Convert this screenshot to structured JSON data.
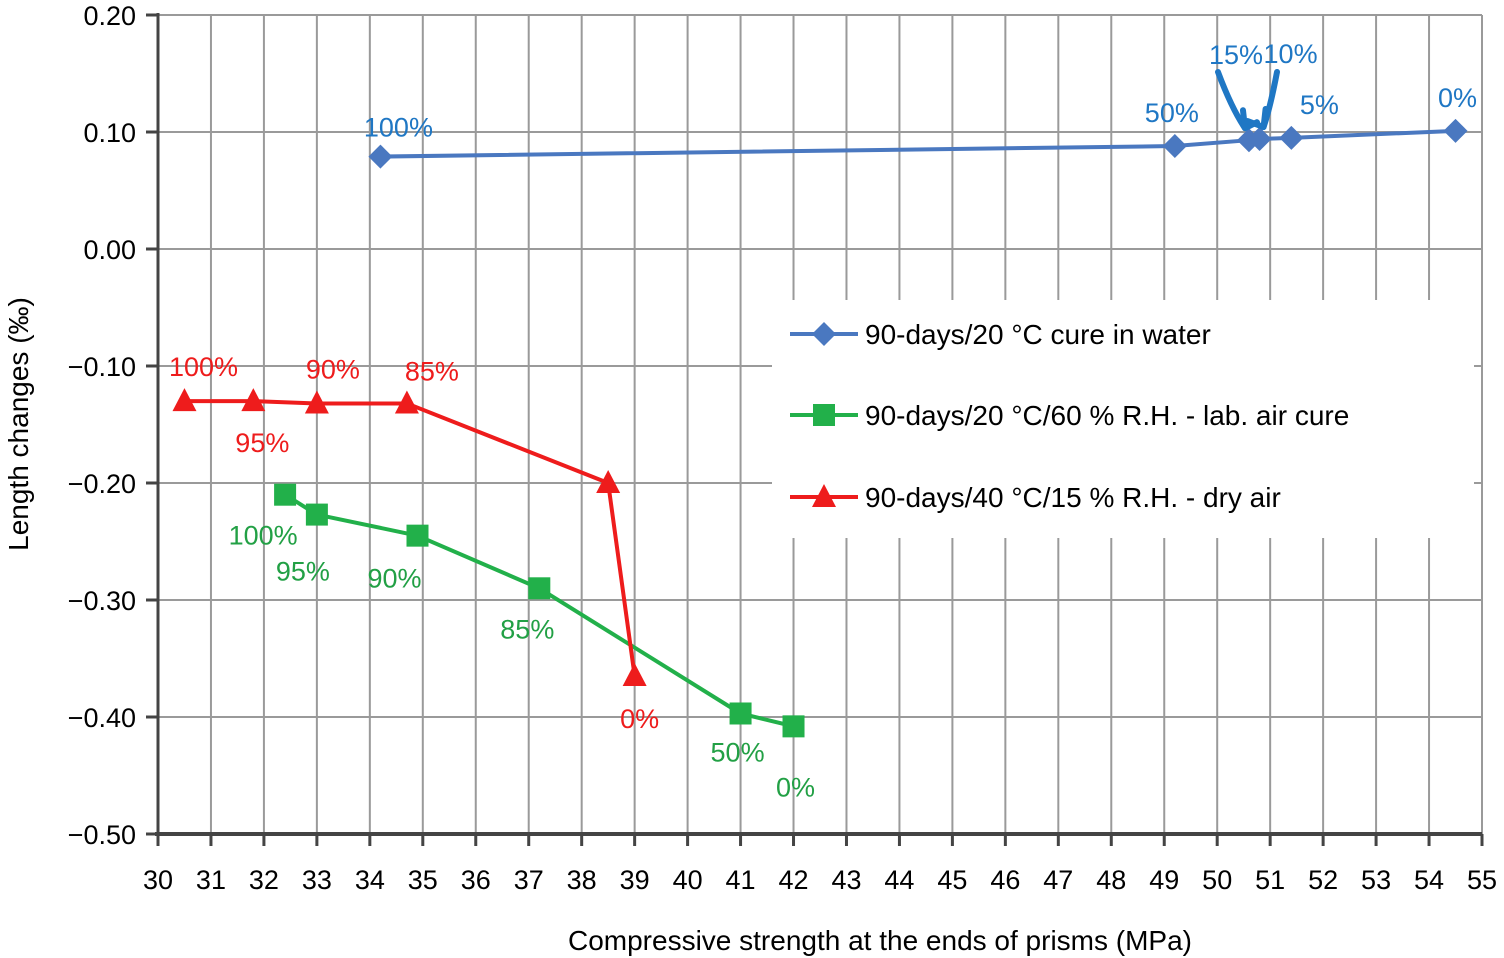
{
  "chart_data": {
    "type": "line",
    "xlabel": "Compressive strength at the ends of prisms (MPa)",
    "ylabel": "Length changes (‰)",
    "xlim": [
      30,
      55
    ],
    "ylim": [
      -0.5,
      0.2
    ],
    "x_ticks": [
      "30",
      "31",
      "32",
      "33",
      "34",
      "35",
      "36",
      "37",
      "38",
      "39",
      "40",
      "41",
      "42",
      "43",
      "44",
      "45",
      "46",
      "47",
      "48",
      "49",
      "50",
      "51",
      "52",
      "53",
      "54",
      "55"
    ],
    "y_ticks": [
      {
        "value": 0.2,
        "label": "0.20"
      },
      {
        "value": 0.1,
        "label": "0.10"
      },
      {
        "value": 0.0,
        "label": "0.00"
      },
      {
        "value": -0.1,
        "label": "−0.10"
      },
      {
        "value": -0.2,
        "label": "−0.20"
      },
      {
        "value": -0.3,
        "label": "−0.30"
      },
      {
        "value": -0.4,
        "label": "−0.40"
      },
      {
        "value": -0.5,
        "label": "−0.50"
      }
    ],
    "grid": true,
    "legend_position": "right-middle",
    "series": [
      {
        "name": "90-days/20 °C cure in water",
        "color": "#4a78c0",
        "label_color": "#1f77c4",
        "marker": "diamond",
        "points": [
          {
            "x": 34.2,
            "y": 0.079,
            "label": "100%"
          },
          {
            "x": 49.2,
            "y": 0.088,
            "label": "50%"
          },
          {
            "x": 50.6,
            "y": 0.093,
            "label": "15%"
          },
          {
            "x": 50.8,
            "y": 0.094,
            "label": "10%"
          },
          {
            "x": 51.4,
            "y": 0.095,
            "label": "5%"
          },
          {
            "x": 54.5,
            "y": 0.101,
            "label": "0%"
          }
        ]
      },
      {
        "name": "90-days/20 °C/60 % R.H. - lab. air cure",
        "color": "#22b04a",
        "label_color": "#22a045",
        "marker": "square",
        "points": [
          {
            "x": 32.4,
            "y": -0.21,
            "label": "100%"
          },
          {
            "x": 33.0,
            "y": -0.227,
            "label": "95%"
          },
          {
            "x": 34.9,
            "y": -0.245,
            "label": "90%"
          },
          {
            "x": 37.2,
            "y": -0.29,
            "label": "85%"
          },
          {
            "x": 41.0,
            "y": -0.397,
            "label": "50%"
          },
          {
            "x": 42.0,
            "y": -0.408,
            "label": "0%"
          }
        ]
      },
      {
        "name": "90-days/40 °C/15 % R.H. - dry air",
        "color": "#ee1c1c",
        "label_color": "#ee1c1c",
        "marker": "triangle",
        "points": [
          {
            "x": 30.5,
            "y": -0.13,
            "label": "100%"
          },
          {
            "x": 31.8,
            "y": -0.13,
            "label": "95%"
          },
          {
            "x": 33.0,
            "y": -0.132,
            "label": "90%"
          },
          {
            "x": 34.7,
            "y": -0.132,
            "label": "85%"
          },
          {
            "x": 38.5,
            "y": -0.2,
            "label": ""
          },
          {
            "x": 39.0,
            "y": -0.365,
            "label": "0%"
          }
        ]
      }
    ]
  }
}
